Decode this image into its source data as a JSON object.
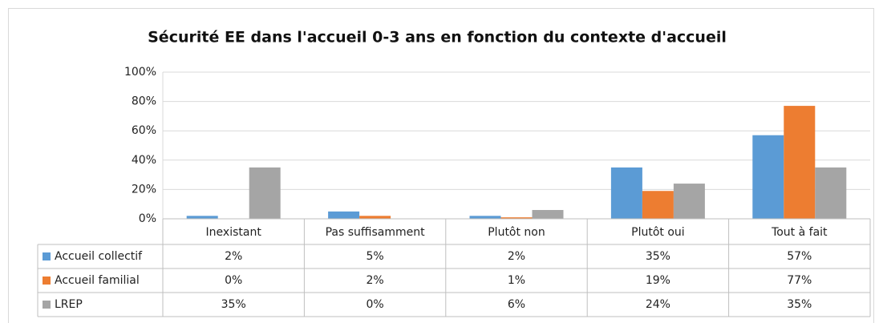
{
  "chart_data": {
    "type": "bar",
    "title": "Sécurité EE dans l'accueil 0-3 ans en fonction du contexte d'accueil",
    "categories": [
      "Inexistant",
      "Pas suffisamment",
      "Plutôt non",
      "Plutôt oui",
      "Tout à fait"
    ],
    "series": [
      {
        "name": "Accueil collectif",
        "color": "#5b9bd5",
        "values": [
          2,
          5,
          2,
          35,
          57
        ],
        "value_labels": [
          "2%",
          "5%",
          "2%",
          "35%",
          "57%"
        ]
      },
      {
        "name": "Accueil familial",
        "color": "#ed7d31",
        "values": [
          0,
          2,
          1,
          19,
          77
        ],
        "value_labels": [
          "0%",
          "2%",
          "1%",
          "19%",
          "77%"
        ]
      },
      {
        "name": "LREP",
        "color": "#a5a5a5",
        "values": [
          35,
          0,
          6,
          24,
          35
        ],
        "value_labels": [
          "35%",
          "0%",
          "6%",
          "24%",
          "35%"
        ]
      }
    ],
    "ylim": [
      0,
      100
    ],
    "yticks": [
      {
        "value": 0,
        "label": "0%"
      },
      {
        "value": 20,
        "label": "20%"
      },
      {
        "value": 40,
        "label": "40%"
      },
      {
        "value": 60,
        "label": "60%"
      },
      {
        "value": 80,
        "label": "80%"
      },
      {
        "value": 100,
        "label": "100%"
      }
    ],
    "grid": true
  }
}
